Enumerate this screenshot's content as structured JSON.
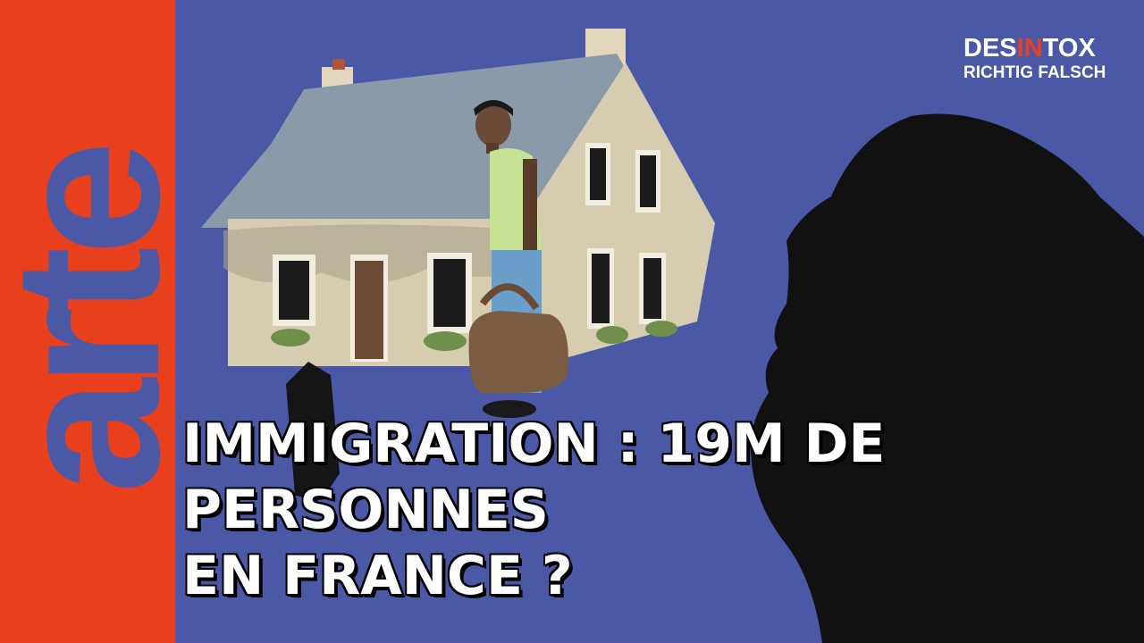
{
  "logo": {
    "text": "arte"
  },
  "badge": {
    "line1_a": "DES",
    "line1_b": "IN",
    "line1_c": "TOX",
    "line2": "RICHTIG FALSCH"
  },
  "headline": {
    "line1": "IMMIGRATION : 19M DE",
    "line2": "PERSONNES",
    "line3": "EN FRANCE ?"
  },
  "colors": {
    "background": "#4a58a6",
    "arte_red": "#e8401c",
    "house_wall": "#d6ccb0",
    "roof": "#8a9aa8"
  }
}
